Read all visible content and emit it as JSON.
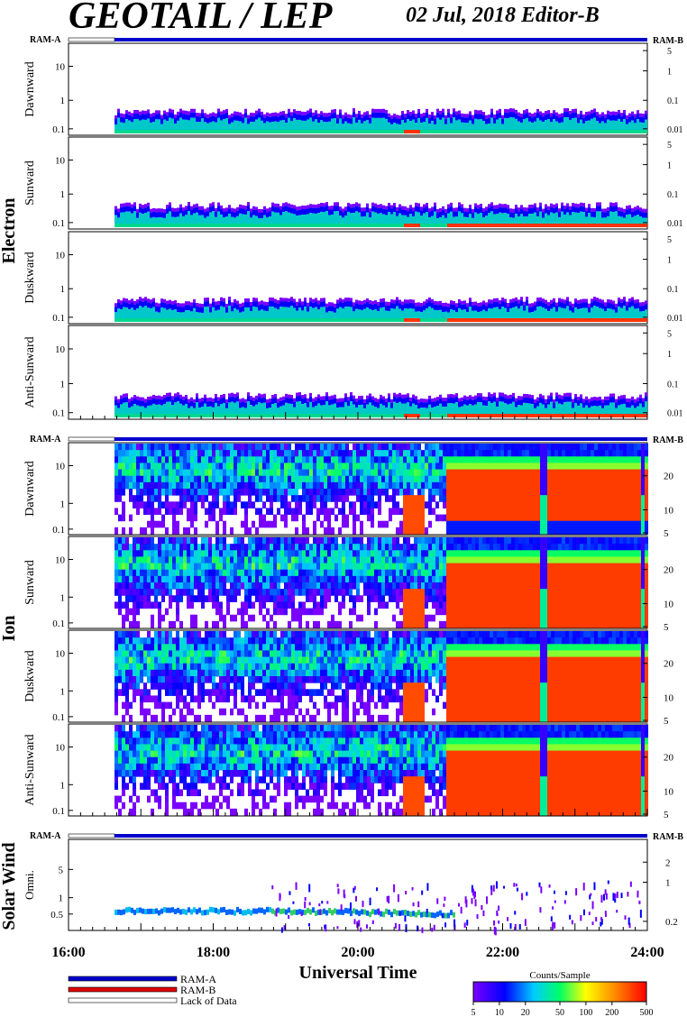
{
  "header": {
    "title": "GEOTAIL / LEP",
    "date_editor": "02 Jul, 2018   Editor-B"
  },
  "ram_labels": {
    "left": "RAM-A",
    "right": "RAM-B"
  },
  "groups": [
    {
      "name": "Electron",
      "panels": [
        "Dawnward",
        "Sunward",
        "Duskward",
        "Anti-Sunward"
      ],
      "left_ticks": [
        "10",
        "1",
        "0.1"
      ],
      "right_ticks": [
        "5",
        "1",
        "0.1",
        "0.01"
      ]
    },
    {
      "name": "Ion",
      "panels": [
        "Dawnward",
        "Sunward",
        "Duskward",
        "Anti-Sunward"
      ],
      "left_ticks": [
        "10",
        "1",
        "0.1"
      ],
      "right_ticks": [
        "20",
        "10",
        "5"
      ]
    },
    {
      "name": "Solar Wind",
      "panels": [
        "Omni."
      ],
      "left_ticks": [
        "5",
        "1",
        "0.5"
      ],
      "right_ticks": [
        "2",
        "1",
        "0.2"
      ]
    }
  ],
  "x_axis": {
    "label": "Universal Time",
    "ticks": [
      "16:00",
      "18:00",
      "20:00",
      "22:00",
      "24:00"
    ]
  },
  "legend": {
    "items": [
      "RAM-A",
      "RAM-B",
      "Lack of Data"
    ]
  },
  "colorbar": {
    "title": "Counts/Sample",
    "ticks": [
      "5",
      "10",
      "20",
      "50",
      "100",
      "200",
      "500"
    ]
  },
  "colors": {
    "ram_a": "#0000cc",
    "ram_b": "#dd0000",
    "lack_of_data": "#ffffff"
  },
  "chart_data": {
    "type": "heatmap",
    "time_range": [
      "16:00",
      "24:00"
    ],
    "data_start": "16:38",
    "intensity_scale": "log",
    "intensity_range": [
      5,
      500
    ],
    "notes_in_figure": []
  }
}
